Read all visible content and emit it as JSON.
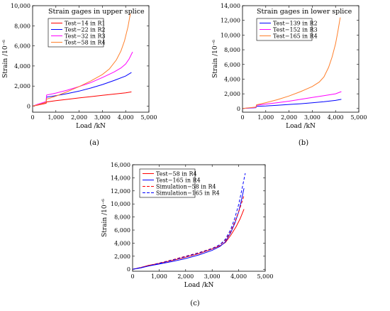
{
  "chart_data": [
    {
      "type": "line",
      "panel_label": "(a)",
      "title": "Strain gages in upper splice",
      "xlabel": "Load /kN",
      "ylabel": "Strain /10⁻⁶",
      "xlim": [
        0,
        5000
      ],
      "ylim": [
        -600,
        10000
      ],
      "xticks": [
        0,
        1000,
        2000,
        3000,
        4000,
        5000
      ],
      "xtick_labels": [
        "0",
        "1,000",
        "2,000",
        "3,000",
        "4,000",
        "5,000"
      ],
      "yticks": [
        0,
        2000,
        4000,
        6000,
        8000,
        10000
      ],
      "ytick_labels": [
        "0",
        "2,000",
        "4,000",
        "6,000",
        "8,000",
        "10,000"
      ],
      "legend_position": "top-left",
      "series": [
        {
          "name": "Test−14 in R1",
          "color": "#ff0000",
          "dash": "solid",
          "x": [
            0,
            200,
            400,
            580,
            600,
            1000,
            1500,
            2000,
            2500,
            3000,
            3500,
            4000,
            4250
          ],
          "y": [
            0,
            100,
            200,
            280,
            420,
            550,
            680,
            820,
            950,
            1080,
            1200,
            1330,
            1420
          ]
        },
        {
          "name": "Test−22 in R2",
          "color": "#0000ff",
          "dash": "solid",
          "x": [
            0,
            200,
            400,
            580,
            600,
            1000,
            1500,
            2000,
            2500,
            3000,
            3500,
            4000,
            4250
          ],
          "y": [
            0,
            150,
            280,
            400,
            900,
            1050,
            1250,
            1500,
            1800,
            2150,
            2550,
            3000,
            3350
          ]
        },
        {
          "name": "Test−32 in R3",
          "color": "#ff00ff",
          "dash": "solid",
          "x": [
            0,
            200,
            400,
            580,
            600,
            1000,
            1500,
            2000,
            2500,
            3000,
            3500,
            3800,
            4000,
            4150,
            4300
          ],
          "y": [
            0,
            180,
            320,
            450,
            1100,
            1300,
            1600,
            1950,
            2350,
            2850,
            3400,
            3800,
            4200,
            4700,
            5400
          ]
        },
        {
          "name": "Test−58 in R4",
          "color": "#ff7f2a",
          "dash": "solid",
          "x": [
            0,
            200,
            400,
            580,
            600,
            1000,
            1500,
            2000,
            2500,
            3000,
            3300,
            3600,
            3800,
            3950,
            4100,
            4200
          ],
          "y": [
            0,
            130,
            250,
            380,
            700,
            1000,
            1450,
            1950,
            2500,
            3150,
            3700,
            4600,
            5500,
            6500,
            7900,
            9200
          ]
        }
      ]
    },
    {
      "type": "line",
      "panel_label": "(b)",
      "title": "Strain gages in lower splice",
      "xlabel": "Load /kN",
      "ylabel": "Strain /10⁻⁶",
      "xlim": [
        0,
        5000
      ],
      "ylim": [
        -500,
        14000
      ],
      "xticks": [
        0,
        1000,
        2000,
        3000,
        4000,
        5000
      ],
      "xtick_labels": [
        "0",
        "1,000",
        "2,000",
        "3,000",
        "4,000",
        "5,000"
      ],
      "yticks": [
        0,
        2000,
        4000,
        6000,
        8000,
        10000,
        12000,
        14000
      ],
      "ytick_labels": [
        "0",
        "2,000",
        "4,000",
        "6,000",
        "8,000",
        "10,000",
        "12,000",
        "14,000"
      ],
      "legend_position": "top-left",
      "series": [
        {
          "name": "Test−139 in R2",
          "color": "#0000ff",
          "dash": "solid",
          "x": [
            0,
            300,
            580,
            600,
            1000,
            1500,
            2000,
            2500,
            3000,
            3500,
            4000,
            4250
          ],
          "y": [
            0,
            60,
            120,
            300,
            350,
            450,
            550,
            650,
            780,
            920,
            1100,
            1250
          ]
        },
        {
          "name": "Test−152 in R3",
          "color": "#ff00ff",
          "dash": "solid",
          "x": [
            0,
            300,
            580,
            600,
            1000,
            1500,
            2000,
            2500,
            3000,
            3500,
            4000,
            4250
          ],
          "y": [
            0,
            80,
            150,
            450,
            600,
            800,
            1000,
            1250,
            1500,
            1750,
            2000,
            2300
          ]
        },
        {
          "name": "Test−165 in R4",
          "color": "#ff7f2a",
          "dash": "solid",
          "x": [
            0,
            300,
            580,
            600,
            1000,
            1500,
            2000,
            2500,
            3000,
            3300,
            3500,
            3700,
            3850,
            4000,
            4100,
            4200
          ],
          "y": [
            0,
            100,
            200,
            500,
            800,
            1200,
            1700,
            2300,
            3000,
            3600,
            4300,
            5600,
            7000,
            8800,
            10500,
            12400
          ]
        }
      ]
    },
    {
      "type": "line",
      "panel_label": "(c)",
      "title": "",
      "xlabel": "Load /kN",
      "ylabel": "Strain /10⁻⁶",
      "xlim": [
        0,
        5000
      ],
      "ylim": [
        -300,
        16000
      ],
      "xticks": [
        0,
        1000,
        2000,
        3000,
        4000,
        5000
      ],
      "xtick_labels": [
        "0",
        "1,000",
        "2,000",
        "3,000",
        "4,000",
        "5,000"
      ],
      "yticks": [
        0,
        2000,
        4000,
        6000,
        8000,
        10000,
        12000,
        14000,
        16000
      ],
      "ytick_labels": [
        "0",
        "2,000",
        "4,000",
        "6,000",
        "8,000",
        "10,000",
        "12,000",
        "14,000",
        "16,000"
      ],
      "legend_position": "top-left",
      "series": [
        {
          "name": "Test−58 in R4",
          "color": "#ff0000",
          "dash": "solid",
          "x": [
            0,
            300,
            600,
            1000,
            1500,
            2000,
            2500,
            3000,
            3300,
            3500,
            3700,
            3900,
            4050,
            4200
          ],
          "y": [
            0,
            250,
            600,
            900,
            1350,
            1850,
            2400,
            3100,
            3600,
            4100,
            5200,
            6500,
            7700,
            9200
          ]
        },
        {
          "name": "Test−165 in R4",
          "color": "#0000ff",
          "dash": "solid",
          "x": [
            0,
            300,
            600,
            1000,
            1500,
            2000,
            2500,
            3000,
            3300,
            3500,
            3700,
            3850,
            4000,
            4100,
            4200
          ],
          "y": [
            0,
            200,
            500,
            800,
            1200,
            1650,
            2200,
            2900,
            3500,
            4200,
            5600,
            7000,
            8800,
            10500,
            12400
          ]
        },
        {
          "name": "Simulation−58 in R4",
          "color": "#ff0000",
          "dash": "dashed",
          "x": [
            0,
            500,
            1000,
            1500,
            2000,
            2500,
            3000,
            3300,
            3500,
            3700,
            3850,
            4000,
            4100,
            4200
          ],
          "y": [
            0,
            450,
            950,
            1450,
            2000,
            2550,
            3200,
            3750,
            4400,
            5800,
            7200,
            8800,
            10000,
            11300
          ]
        },
        {
          "name": "Simulation−165 in R4",
          "color": "#0000ff",
          "dash": "dashed",
          "x": [
            0,
            500,
            1000,
            1500,
            2000,
            2500,
            3000,
            3300,
            3500,
            3700,
            3850,
            4000,
            4100,
            4250
          ],
          "y": [
            0,
            420,
            900,
            1400,
            1950,
            2500,
            3150,
            3800,
            4600,
            6100,
            7800,
            9900,
            11800,
            14700
          ]
        }
      ]
    }
  ]
}
